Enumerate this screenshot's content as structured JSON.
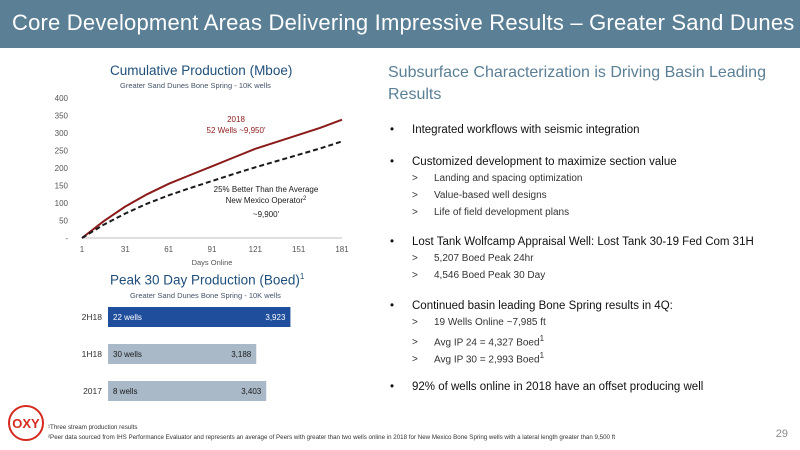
{
  "header": {
    "title": "Core Development Areas Delivering Impressive Results – Greater Sand Dunes"
  },
  "logo": {
    "text": "OXY",
    "color": "#d52b1e"
  },
  "colors": {
    "header_bg": "#5b7f95",
    "line_2018": "#8b1a1a",
    "bar_highlight": "#1f4e9c",
    "bar_gray": "#a9b9c8"
  },
  "chart_data": [
    {
      "type": "line",
      "title": "Cumulative Production (Mboe)",
      "subtitle": "Greater Sand Dunes Bone Spring - 10K wells",
      "xlabel": "Days Online",
      "ylabel": "",
      "x_ticks": [
        "1",
        "31",
        "61",
        "91",
        "121",
        "151",
        "181"
      ],
      "y_ticks": [
        "-",
        "50",
        "100",
        "150",
        "200",
        "250",
        "300",
        "350",
        "400"
      ],
      "xlim": [
        1,
        181
      ],
      "ylim": [
        0,
        400
      ],
      "grid": false,
      "series": [
        {
          "name": "2018",
          "style": "solid",
          "color": "#8b1a1a",
          "x": [
            1,
            16,
            31,
            46,
            61,
            76,
            91,
            106,
            121,
            136,
            151,
            166,
            181
          ],
          "values": [
            0,
            48,
            90,
            125,
            155,
            180,
            205,
            230,
            255,
            275,
            295,
            315,
            338
          ]
        },
        {
          "name": "Average New Mexico Operator",
          "style": "dashed",
          "color": "#1a1a1a",
          "x": [
            1,
            16,
            31,
            46,
            61,
            76,
            91,
            106,
            121,
            136,
            151,
            166,
            181
          ],
          "values": [
            0,
            38,
            70,
            98,
            122,
            143,
            163,
            183,
            202,
            220,
            238,
            256,
            276
          ]
        }
      ],
      "annotations": [
        {
          "lines": [
            "2018",
            "52 Wells ~9,950'"
          ]
        },
        {
          "lines": [
            "25% Better Than the Average",
            "New Mexico Operator",
            "~9,900'"
          ],
          "sup": "2"
        }
      ]
    },
    {
      "type": "bar",
      "title": "Peak 30 Day Production (Boed)",
      "title_sup": "1",
      "subtitle": "Greater Sand Dunes Bone Spring - 10K wells",
      "orientation": "horizontal",
      "categories": [
        "2H18",
        "1H18",
        "2017"
      ],
      "values": [
        3923,
        3188,
        3403
      ],
      "labels": [
        "3,923",
        "3,188",
        "3,403"
      ],
      "well_counts": [
        "22 wells",
        "30 wells",
        "8 wells"
      ],
      "highlight": "2H18",
      "xlim": [
        0,
        4000
      ]
    }
  ],
  "right": {
    "heading": "Subsurface Characterization is Driving Basin Leading Results",
    "bullet1": "Integrated workflows with seismic integration",
    "bullet2": "Customized development to maximize section value",
    "bullet2_sub1": "Landing and spacing optimization",
    "bullet2_sub2": "Value-based well designs",
    "bullet2_sub3": "Life of field development plans",
    "bullet3": "Lost Tank Wolfcamp Appraisal Well:  Lost Tank 30-19 Fed Com 31H",
    "bullet3_sub1": "5,207 Boed Peak 24hr",
    "bullet3_sub2": "4,546 Boed Peak 30 Day",
    "bullet4": "Continued basin leading Bone Spring results in 4Q:",
    "bullet4_sub1": "19 Wells Online ~7,985 ft",
    "bullet4_sub2": "Avg IP 24 = 4,327 Boed",
    "bullet4_sub3": "Avg IP 30 = 2,993 Boed",
    "bullet5": "92% of wells online in 2018 have an offset producing well",
    "bullet_marker": "•",
    "sub_marker": ">",
    "sup": "1"
  },
  "footnotes": {
    "f1": "¹Three stream production results",
    "f2": "²Peer data sourced from IHS Performance Evaluator and represents an average of Peers with greater than two wells online in 2018 for New Mexico Bone Spring wells with a lateral length greater than 9,500 ft"
  },
  "page_number": "29"
}
